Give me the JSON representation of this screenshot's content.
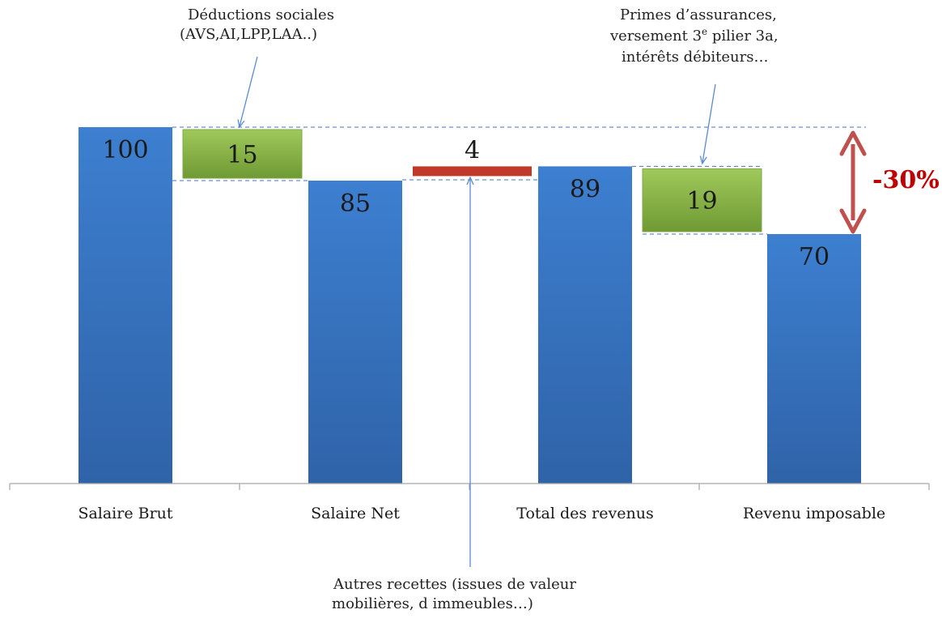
{
  "chart_data": {
    "type": "bar",
    "subtype": "waterfall",
    "categories": [
      "Salaire Brut",
      "Salaire Net",
      "Total des revenus",
      "Revenu imposable"
    ],
    "totals": [
      100,
      85,
      89,
      70
    ],
    "steps": [
      {
        "from": 100,
        "to": 85,
        "value": 15,
        "label": "15",
        "kind": "deduction",
        "color": "#8cb64a"
      },
      {
        "from": 85,
        "to": 89,
        "value": 4,
        "label": "4",
        "kind": "addition",
        "color": "#c0392b"
      },
      {
        "from": 89,
        "to": 70,
        "value": 19,
        "label": "19",
        "kind": "deduction",
        "color": "#8cb64a"
      }
    ],
    "total_labels": [
      "100",
      "85",
      "89",
      "70"
    ],
    "change_label": "-30%",
    "ylim": [
      0,
      100
    ],
    "grid": false,
    "colors": {
      "total": "#3a78c8",
      "deduction": "#8cb64a",
      "addition": "#c0392b",
      "arrow": "#c0504d",
      "guide": "#4a72c4"
    },
    "annotations": [
      {
        "id": "deductions",
        "lines": [
          "Déductions sociales",
          "(AVS,AI,LPP,LAA..)"
        ]
      },
      {
        "id": "primes",
        "lines": [
          "Primes d’assurances,",
          "versement 3e pilier 3a,",
          "intérêts débiteurs…"
        ]
      },
      {
        "id": "autres",
        "lines": [
          "Autres recettes (issues de valeur",
          "mobilières, d immeubles…)"
        ]
      }
    ]
  }
}
